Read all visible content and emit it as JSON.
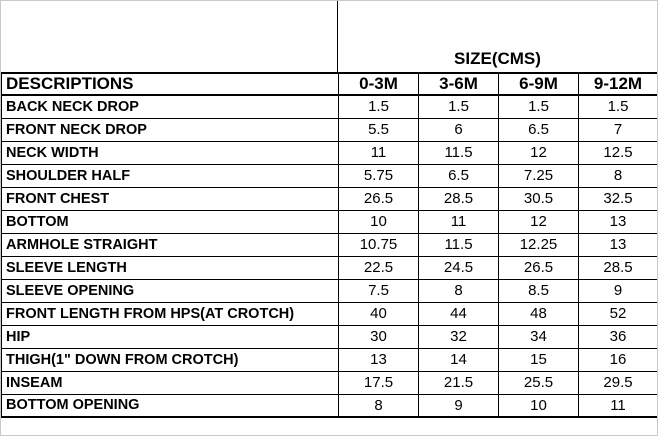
{
  "size_header": "SIZE(CMS)",
  "table": {
    "columns": [
      "DESCRIPTIONS",
      "0-3M",
      "3-6M",
      "6-9M",
      "9-12M"
    ],
    "rows": [
      {
        "label": "BACK NECK DROP",
        "values": [
          "1.5",
          "1.5",
          "1.5",
          "1.5"
        ]
      },
      {
        "label": "FRONT NECK DROP",
        "values": [
          "5.5",
          "6",
          "6.5",
          "7"
        ]
      },
      {
        "label": "NECK WIDTH",
        "values": [
          "11",
          "11.5",
          "12",
          "12.5"
        ]
      },
      {
        "label": "SHOULDER HALF",
        "values": [
          "5.75",
          "6.5",
          "7.25",
          "8"
        ]
      },
      {
        "label": "FRONT CHEST",
        "values": [
          "26.5",
          "28.5",
          "30.5",
          "32.5"
        ]
      },
      {
        "label": "BOTTOM",
        "values": [
          "10",
          "11",
          "12",
          "13"
        ]
      },
      {
        "label": "ARMHOLE STRAIGHT",
        "values": [
          "10.75",
          "11.5",
          "12.25",
          "13"
        ]
      },
      {
        "label": "SLEEVE LENGTH",
        "values": [
          "22.5",
          "24.5",
          "26.5",
          "28.5"
        ]
      },
      {
        "label": "SLEEVE OPENING",
        "values": [
          "7.5",
          "8",
          "8.5",
          "9"
        ]
      },
      {
        "label": "FRONT LENGTH FROM HPS(AT CROTCH)",
        "values": [
          "40",
          "44",
          "48",
          "52"
        ]
      },
      {
        "label": "HIP",
        "values": [
          "30",
          "32",
          "34",
          "36"
        ]
      },
      {
        "label": "THIGH(1\" DOWN FROM CROTCH)",
        "values": [
          "13",
          "14",
          "15",
          "16"
        ]
      },
      {
        "label": "INSEAM",
        "values": [
          "17.5",
          "21.5",
          "25.5",
          "29.5"
        ]
      },
      {
        "label": "BOTTOM OPENING",
        "values": [
          "8",
          "9",
          "10",
          "11"
        ]
      }
    ]
  },
  "colors": {
    "grid_border": "#000000",
    "outer_border": "#c9c9c9",
    "text": "#000000",
    "background": "#ffffff"
  }
}
